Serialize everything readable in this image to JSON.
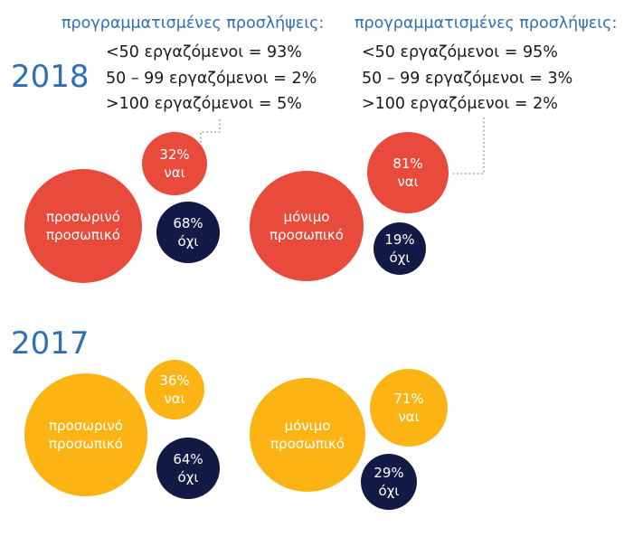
{
  "colors": {
    "red": "#e84a3c",
    "navy": "#141a46",
    "gold": "#fbb414",
    "blue": "#2f6fb7",
    "dots": "#9a9a9a"
  },
  "y2018": {
    "year": "2018",
    "left": {
      "header": "προγραμματισμένες προσλήψεις:",
      "lines": [
        "<50 εργαζόμενοι = 93%",
        "50 – 99 εργαζόμενοι = 2%",
        ">100 εργαζόμενοι = 5%"
      ],
      "main": [
        "προσωρινό",
        "προσωπικό"
      ],
      "yes": {
        "value": "32%",
        "label": "ναι"
      },
      "no": {
        "value": "68%",
        "label": "όχι"
      }
    },
    "right": {
      "header": "προγραμματισμένες προσλήψεις:",
      "lines": [
        "<50 εργαζόμενοι = 95%",
        "50 – 99 εργαζόμενοι = 3%",
        ">100 εργαζόμενοι = 2%"
      ],
      "main": [
        "μόνιμο",
        "προσωπικό"
      ],
      "yes": {
        "value": "81%",
        "label": "ναι"
      },
      "no": {
        "value": "19%",
        "label": "όχι"
      }
    }
  },
  "y2017": {
    "year": "2017",
    "left": {
      "main": [
        "προσωρινό",
        "προσωπικό"
      ],
      "yes": {
        "value": "36%",
        "label": "ναι"
      },
      "no": {
        "value": "64%",
        "label": "όχι"
      }
    },
    "right": {
      "main": [
        "μόνιμο",
        "προσωπικό"
      ],
      "yes": {
        "value": "71%",
        "label": "ναι"
      },
      "no": {
        "value": "29%",
        "label": "όχι"
      }
    }
  }
}
